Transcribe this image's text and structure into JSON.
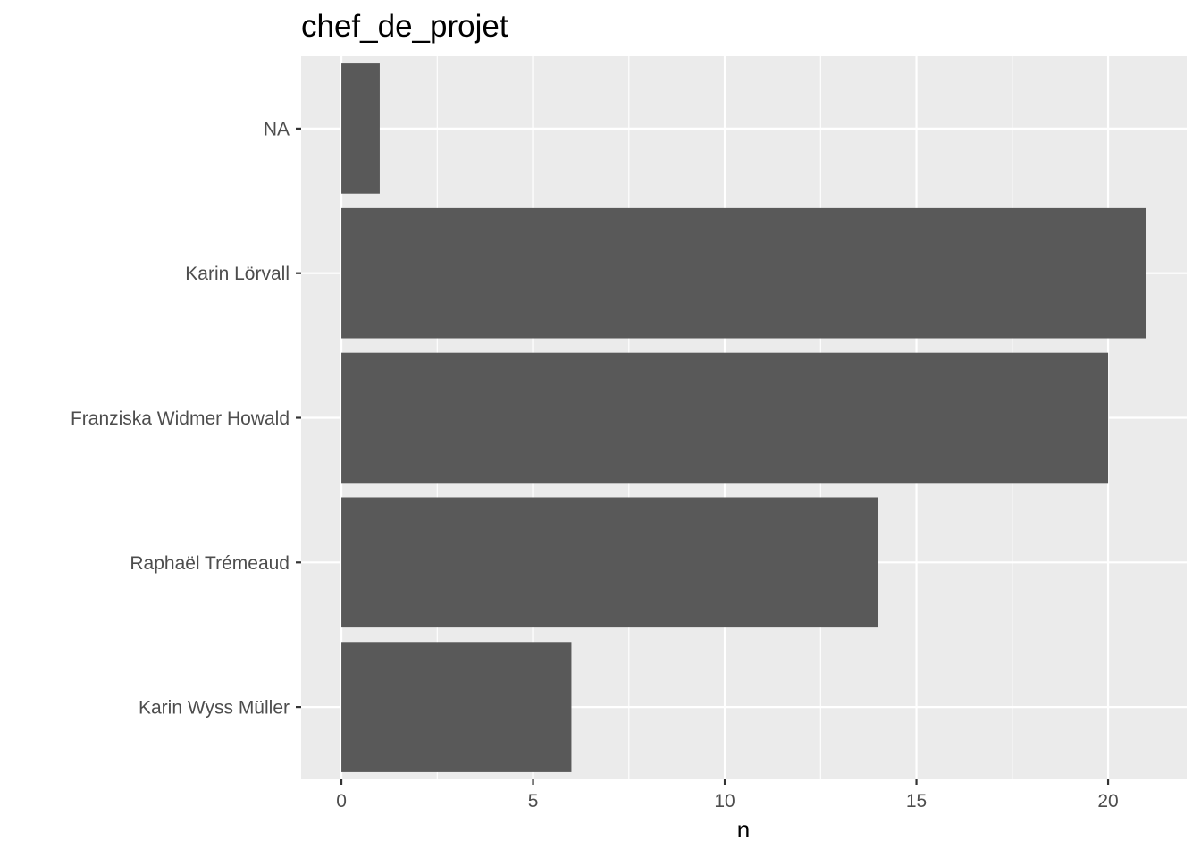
{
  "chart_data": {
    "type": "bar",
    "orientation": "horizontal",
    "title": "chef_de_projet",
    "xlabel": "n",
    "ylabel": "",
    "categories": [
      "NA",
      "Karin Lörvall",
      "Franziska Widmer Howald",
      "Raphaël Trémeaud",
      "Karin Wyss Müller"
    ],
    "values": [
      1,
      21,
      20,
      14,
      6
    ],
    "xlim": [
      -1.05,
      22.05
    ],
    "xticks": [
      0,
      5,
      10,
      15,
      20
    ],
    "grid": true,
    "legend": "none"
  },
  "colors": {
    "panel_background": "#ebebeb",
    "grid_major": "#ffffff",
    "bar_fill": "#595959",
    "tick_text": "#4d4d4d",
    "tick_mark": "#333333"
  }
}
